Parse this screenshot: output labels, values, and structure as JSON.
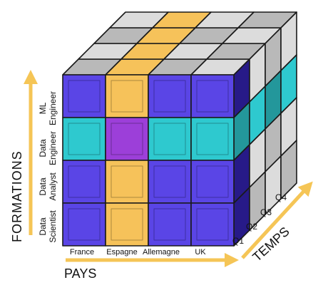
{
  "axes": {
    "y_title": "FORMATIONS",
    "x_title": "PAYS",
    "z_title": "TEMPS"
  },
  "countries": [
    "France",
    "Espagne",
    "Allemagne",
    "UK"
  ],
  "formations": [
    "ML Engineer",
    "Data Engineer",
    "Data Analyst",
    "Data Scientist"
  ],
  "quarters": [
    "Q1",
    "Q2",
    "Q3",
    "Q4"
  ],
  "highlight": {
    "country": "Espagne",
    "formation": "Data Engineer",
    "quarter": "Q1"
  },
  "colors": {
    "base": "#2e1fa0",
    "base_light": "#5a45e6",
    "slice_country": "#f6c25a",
    "slice_formation": "#2ec9cf",
    "intersection": "#9c3fd9",
    "grey": "#dcdcdc",
    "grey_dark": "#b9b9b9",
    "arrow": "#f5c556",
    "outline": "#1a1a1a"
  }
}
